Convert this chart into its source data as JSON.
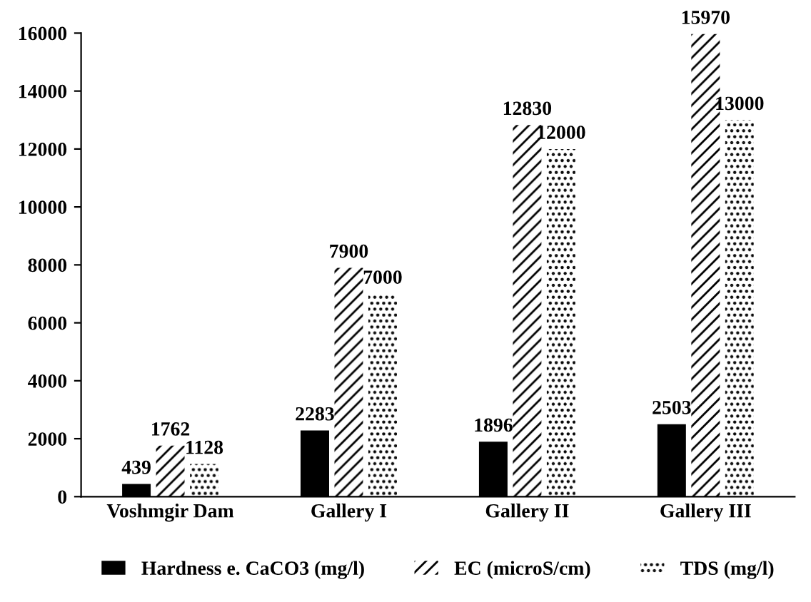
{
  "chart_data": {
    "type": "bar",
    "categories": [
      "Voshmgir Dam",
      "Gallery I",
      "Gallery II",
      "Gallery III"
    ],
    "series": [
      {
        "name": "Hardness e. CaCO3 (mg/l)",
        "color": "#000000",
        "values": [
          439,
          2283,
          1896,
          2503
        ]
      },
      {
        "name": "EC (microS/cm)",
        "color": "#ffffff",
        "values": [
          1762,
          7900,
          12830,
          15970
        ]
      },
      {
        "name": "TDS (mg/l)",
        "color": "#ffffff",
        "values": [
          1128,
          7000,
          12000,
          13000
        ]
      }
    ],
    "ylim": [
      0,
      16000
    ],
    "yticks": [
      0,
      2000,
      4000,
      6000,
      8000,
      10000,
      12000,
      14000,
      16000
    ],
    "grid": false,
    "legend": "bottom",
    "data_labels": true
  }
}
